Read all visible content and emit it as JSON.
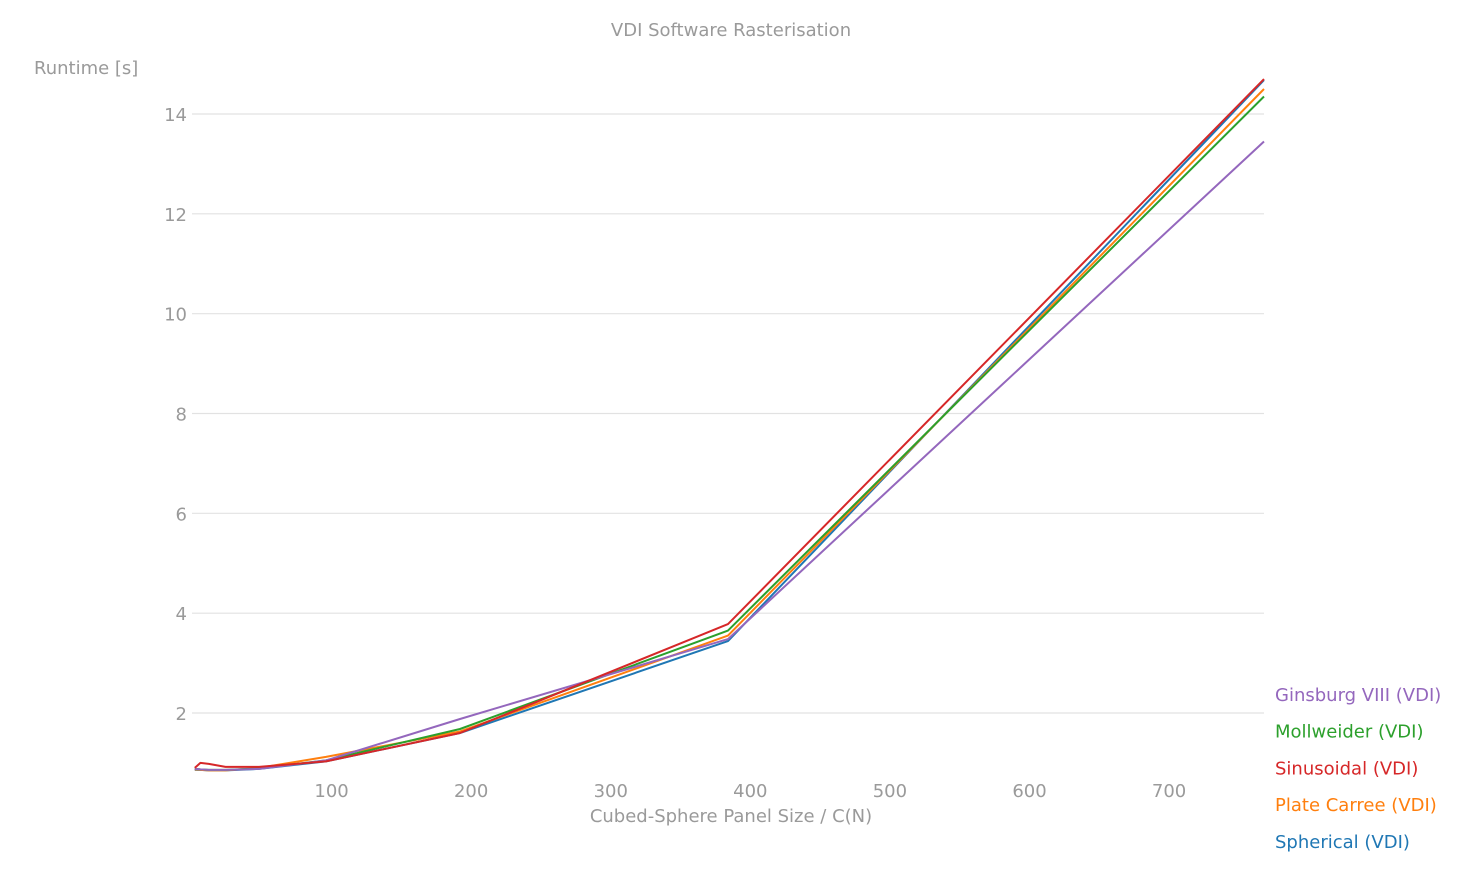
{
  "chart_data": {
    "type": "line",
    "title": "VDI Software Rasterisation",
    "xlabel": "Cubed-Sphere Panel Size / C(N)",
    "ylabel": "Runtime [s]",
    "xlim": [
      0,
      768
    ],
    "ylim": [
      0.85,
      15
    ],
    "xticks": [
      100,
      200,
      300,
      400,
      500,
      600,
      700
    ],
    "yticks": [
      2,
      4,
      6,
      8,
      10,
      12,
      14
    ],
    "grid": "horizontal",
    "legend_position": "right",
    "x": [
      2,
      6,
      12,
      24,
      48,
      96,
      192,
      384,
      768
    ],
    "series": [
      {
        "name": "Ginsburg VIII (VDI)",
        "color": "#9467bd",
        "values": [
          0.88,
          0.87,
          0.86,
          0.86,
          0.88,
          1.05,
          1.88,
          3.48,
          13.45
        ]
      },
      {
        "name": "Mollweider (VDI)",
        "color": "#2ca02c",
        "values": [
          0.88,
          0.87,
          0.86,
          0.86,
          0.89,
          1.05,
          1.68,
          3.65,
          14.35
        ]
      },
      {
        "name": "Sinusoidal (VDI)",
        "color": "#d62728",
        "values": [
          0.9,
          1.0,
          0.98,
          0.92,
          0.92,
          1.03,
          1.6,
          3.78,
          14.7
        ]
      },
      {
        "name": "Plate Carree (VDI)",
        "color": "#ff7f0e",
        "values": [
          0.87,
          0.86,
          0.85,
          0.85,
          0.9,
          1.12,
          1.63,
          3.55,
          14.5
        ]
      },
      {
        "name": "Spherical (VDI)",
        "color": "#1f77b4",
        "values": [
          0.86,
          0.86,
          0.85,
          0.85,
          0.88,
          1.03,
          1.6,
          3.44,
          14.68
        ]
      }
    ]
  }
}
